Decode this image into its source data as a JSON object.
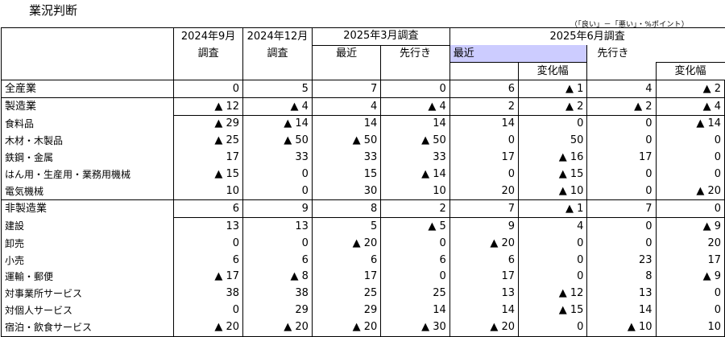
{
  "title": "業況判断",
  "note": "（「良い」－「悪い」・%ポイント）",
  "header": {
    "sep2024": "2024年9月",
    "dec2024": "2024年12月",
    "chosa": "調査",
    "mar2025": "2025年3月調査",
    "jun2025": "2025年6月調査",
    "saikin": "最近",
    "sakiyuki": "先行き",
    "henkahaba": "変化幅"
  },
  "rows": [
    {
      "label": "全産業",
      "level": 0,
      "v": [
        "0",
        "5",
        "7",
        "0",
        "6",
        "▲ 1",
        "4",
        "▲ 2"
      ]
    },
    {
      "label": "製造業",
      "level": 1,
      "v": [
        "▲ 12",
        "▲ 4",
        "4",
        "▲ 4",
        "2",
        "▲ 2",
        "▲ 2",
        "▲ 4"
      ]
    },
    {
      "label": "食料品",
      "level": 2,
      "v": [
        "▲ 29",
        "▲ 14",
        "14",
        "14",
        "14",
        "0",
        "0",
        "▲ 14"
      ]
    },
    {
      "label": "木材・木製品",
      "level": 2,
      "v": [
        "▲ 25",
        "▲ 50",
        "▲ 50",
        "▲ 50",
        "0",
        "50",
        "0",
        "0"
      ]
    },
    {
      "label": "鉄鋼・金属",
      "level": 2,
      "v": [
        "17",
        "33",
        "33",
        "33",
        "17",
        "▲ 16",
        "17",
        "0"
      ]
    },
    {
      "label": "はん用・生産用・業務用機械",
      "level": 2,
      "v": [
        "▲ 15",
        "0",
        "15",
        "▲ 14",
        "0",
        "▲ 15",
        "0",
        "0"
      ]
    },
    {
      "label": "電気機械",
      "level": 2,
      "v": [
        "10",
        "0",
        "30",
        "10",
        "20",
        "▲ 10",
        "0",
        "▲ 20"
      ]
    },
    {
      "label": "非製造業",
      "level": 1,
      "v": [
        "6",
        "9",
        "8",
        "2",
        "7",
        "▲ 1",
        "7",
        "0"
      ]
    },
    {
      "label": "建設",
      "level": 2,
      "v": [
        "13",
        "13",
        "5",
        "▲ 5",
        "9",
        "4",
        "0",
        "▲ 9"
      ]
    },
    {
      "label": "卸売",
      "level": 2,
      "v": [
        "0",
        "0",
        "▲ 20",
        "0",
        "▲ 20",
        "0",
        "0",
        "20"
      ]
    },
    {
      "label": "小売",
      "level": 2,
      "v": [
        "6",
        "6",
        "6",
        "6",
        "6",
        "0",
        "23",
        "17"
      ]
    },
    {
      "label": "運輸・郵便",
      "level": 2,
      "v": [
        "▲ 17",
        "▲ 8",
        "17",
        "0",
        "17",
        "0",
        "8",
        "▲ 9"
      ]
    },
    {
      "label": "対事業所サービス",
      "level": 2,
      "v": [
        "38",
        "38",
        "25",
        "25",
        "13",
        "▲ 12",
        "13",
        "0"
      ]
    },
    {
      "label": "対個人サービス",
      "level": 2,
      "v": [
        "0",
        "29",
        "29",
        "14",
        "14",
        "▲ 15",
        "14",
        "0"
      ]
    },
    {
      "label": "宿泊・飲食サービス",
      "level": 2,
      "v": [
        "▲ 20",
        "▲ 20",
        "▲ 20",
        "▲ 30",
        "▲ 20",
        "0",
        "▲ 10",
        "10"
      ]
    }
  ]
}
